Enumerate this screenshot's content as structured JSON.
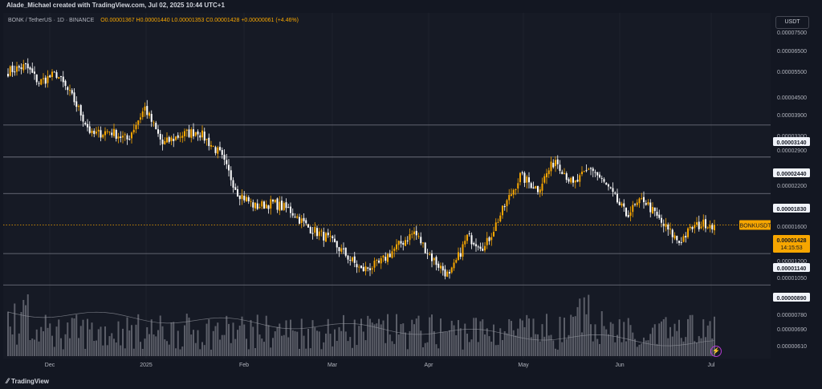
{
  "header": {
    "credit": "Alade_Michael created with TradingView.com, Jul 02, 2025 10:44 UTC+1",
    "symbol": "BONK / TetherUS · 1D · BINANCE",
    "ohlc": "O0.00001367 H0.00001440 L0.00001353 C0.00001428 +0.00000061 (+4.46%)",
    "currency": "USDT"
  },
  "footer": {
    "brand": "TradingView"
  },
  "colors": {
    "background": "#131722",
    "up": "#f7a600",
    "down": "#ffffff",
    "volume": "#9598a1",
    "level_line": "#787b86"
  },
  "chart_data": {
    "type": "candlestick",
    "symbol_tag": "BONKUSDT",
    "last_price": "0.00001428",
    "countdown": "14:15:53",
    "y_ticks": [
      "0.00007500",
      "0.00006500",
      "0.00005500",
      "0.00004500",
      "0.00003900",
      "0.00003300",
      "0.00002900",
      "0.00002200",
      "0.00001600",
      "0.00001200",
      "0.00001050",
      "0.00000780",
      "0.00000690",
      "0.00000610"
    ],
    "levels": [
      "0.00003140",
      "0.00002440",
      "0.00001830",
      "0.00001140",
      "0.00000890"
    ],
    "x_ticks": [
      "Dec",
      "2025",
      "Feb",
      "Mar",
      "Apr",
      "May",
      "Jun",
      "Jul"
    ],
    "scale": "log",
    "close_anchors": [
      [
        0,
        4.8e-05
      ],
      [
        8,
        5e-05
      ],
      [
        14,
        4.4e-05
      ],
      [
        22,
        4.7e-05
      ],
      [
        30,
        3.8e-05
      ],
      [
        38,
        2.9e-05
      ],
      [
        46,
        3e-05
      ],
      [
        54,
        2.8e-05
      ],
      [
        62,
        3.6e-05
      ],
      [
        70,
        2.7e-05
      ],
      [
        78,
        2.9e-05
      ],
      [
        86,
        3e-05
      ],
      [
        96,
        2.5e-05
      ],
      [
        104,
        1.85e-05
      ],
      [
        112,
        1.65e-05
      ],
      [
        120,
        1.7e-05
      ],
      [
        128,
        1.6e-05
      ],
      [
        136,
        1.4e-05
      ],
      [
        144,
        1.3e-05
      ],
      [
        152,
        1.15e-05
      ],
      [
        160,
        1e-05
      ],
      [
        168,
        1.05e-05
      ],
      [
        176,
        1.2e-05
      ],
      [
        184,
        1.35e-05
      ],
      [
        192,
        1.1e-05
      ],
      [
        200,
        9.5e-06
      ],
      [
        208,
        1.3e-05
      ],
      [
        216,
        1.2e-05
      ],
      [
        224,
        1.6e-05
      ],
      [
        232,
        2.1e-05
      ],
      [
        240,
        1.9e-05
      ],
      [
        248,
        2.4e-05
      ],
      [
        256,
        1.95e-05
      ],
      [
        264,
        2.25e-05
      ],
      [
        272,
        1.9e-05
      ],
      [
        280,
        1.55e-05
      ],
      [
        288,
        1.75e-05
      ],
      [
        296,
        1.45e-05
      ],
      [
        304,
        1.25e-05
      ],
      [
        310,
        1.4e-05
      ],
      [
        316,
        1.45e-05
      ],
      [
        320,
        1.428e-05
      ]
    ]
  }
}
